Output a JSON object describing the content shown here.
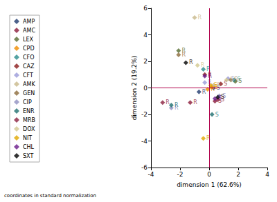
{
  "chart_data": {
    "type": "scatter",
    "x_label": "dimension 1 (62.6%)",
    "y_label": "dimension 2 (19.2%)",
    "note": "coordinates in standard normalization",
    "xlim": [
      -4,
      4
    ],
    "xticks": [
      -4,
      -2,
      0,
      2,
      4
    ],
    "ylim": [
      -6,
      6
    ],
    "yticks": [
      -6,
      -4,
      -2,
      0,
      2,
      4,
      6
    ],
    "grid": false,
    "legend": "left",
    "marker": "diamond",
    "data_labels": true,
    "reference_lines": [
      {
        "axis": "x",
        "value": 0,
        "color": "#b0004a"
      },
      {
        "axis": "y",
        "value": 0,
        "color": "#b0004a"
      }
    ],
    "series": [
      {
        "name": "AMP",
        "color": "#1f3a6e",
        "x": [
          -0.7,
          0.3
        ],
        "values": [
          -0.3,
          0.0
        ],
        "labels": [
          "R",
          "S"
        ]
      },
      {
        "name": "AMC",
        "color": "#8b1a3a",
        "x": [
          -1.3,
          0.4
        ],
        "values": [
          -1.1,
          -1.0
        ],
        "labels": [
          "R",
          "S"
        ]
      },
      {
        "name": "LEX",
        "color": "#556b2f",
        "x": [
          -2.1,
          1.8
        ],
        "values": [
          2.8,
          0.5
        ],
        "labels": [
          "R",
          "S"
        ]
      },
      {
        "name": "CPD",
        "color": "#f08c00",
        "x": [
          -0.1,
          0.15
        ],
        "values": [
          -0.1,
          0.05
        ],
        "labels": [
          "R",
          "S"
        ]
      },
      {
        "name": "CFO",
        "color": "#2a8c8c",
        "x": [
          -0.4,
          1.7
        ],
        "values": [
          1.4,
          0.6
        ],
        "labels": [
          "R",
          "S"
        ]
      },
      {
        "name": "CAZ",
        "color": "#8b1a1a",
        "x": [
          -0.3,
          0.8
        ],
        "values": [
          1.0,
          0.3
        ],
        "labels": [
          "R",
          "S"
        ]
      },
      {
        "name": "CFT",
        "color": "#9a9ad8",
        "x": [
          -0.3,
          1.3
        ],
        "values": [
          0.4,
          0.7
        ],
        "labels": [
          "R",
          "S"
        ]
      },
      {
        "name": "AMK",
        "color": "#c8b88a",
        "x": [
          -1.0,
          0.3
        ],
        "values": [
          5.3,
          0.2
        ],
        "labels": [
          "R",
          "S"
        ]
      },
      {
        "name": "GEN",
        "color": "#8b6a3a",
        "x": [
          -2.1,
          1.5
        ],
        "values": [
          2.5,
          0.6
        ],
        "labels": [
          "R",
          "S"
        ]
      },
      {
        "name": "CIP",
        "color": "#9090c0",
        "x": [
          -2.6,
          0.7
        ],
        "values": [
          -1.5,
          -0.6
        ],
        "labels": [
          "R",
          "S"
        ]
      },
      {
        "name": "ENR",
        "color": "#1f6f6f",
        "x": [
          -2.6,
          0.2
        ],
        "values": [
          -1.3,
          -2.0
        ],
        "labels": [
          "R",
          "S"
        ]
      },
      {
        "name": "MRB",
        "color": "#8b2040",
        "x": [
          -3.2,
          0.6
        ],
        "values": [
          -1.1,
          -0.9
        ],
        "labels": [
          "R",
          "S"
        ]
      },
      {
        "name": "DOX",
        "color": "#d2c890",
        "x": [
          -0.8,
          1.2
        ],
        "values": [
          1.7,
          0.6
        ],
        "labels": [
          "R",
          "S"
        ]
      },
      {
        "name": "NIT",
        "color": "#e0a800",
        "x": [
          -0.4,
          0.1
        ],
        "values": [
          -3.8,
          0.2
        ],
        "labels": [
          "R",
          "S"
        ]
      },
      {
        "name": "CHL",
        "color": "#6a1a8a",
        "x": [
          -0.3,
          0.4
        ],
        "values": [
          0.9,
          -0.8
        ],
        "labels": [
          "R",
          "S"
        ]
      },
      {
        "name": "SXT",
        "color": "#000000",
        "x": [
          -1.6,
          0.6
        ],
        "values": [
          1.9,
          -0.7
        ],
        "labels": [
          "R",
          "S"
        ]
      }
    ]
  }
}
